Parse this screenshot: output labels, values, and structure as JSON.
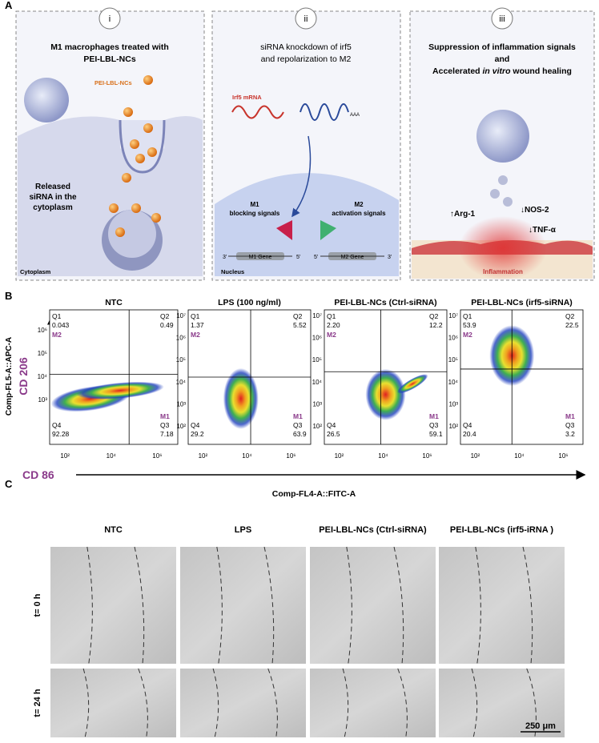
{
  "panel_a": {
    "label": "A",
    "sections": [
      {
        "numeral": "i",
        "title": [
          "M1 macrophages treated with",
          "PEI-LBL-NCs"
        ],
        "nanoparticle_label": "PEI-LBL-NCs",
        "released_label": [
          "Released",
          "siRNA  in the",
          "cytoplasm"
        ],
        "compartment": "Cytoplasm"
      },
      {
        "numeral": "ii",
        "title": [
          "siRNA knockdown of irf5",
          "and repolarization to M2"
        ],
        "mrna_label": "Irf5 mRNA",
        "poly_a": "AAA",
        "m1_signal": [
          "M1",
          "blocking signals"
        ],
        "m2_signal": [
          "M2",
          "activation signals"
        ],
        "m1_gene": "M1 Gene",
        "m2_gene": "M2 Gene",
        "end_3": "3'",
        "end_5": "5'",
        "compartment": "Nucleus"
      },
      {
        "numeral": "iii",
        "title_line1": "Suppression of inflammation signals",
        "title_line2": "and",
        "title_line3_pre": "Accelerated ",
        "title_line3_italic": "in vitro",
        "title_line3_post": " wound healing",
        "markers": [
          "↑Arg-1",
          "↓NOS-2",
          "↓TNF-α"
        ],
        "wound_label": "Inflammation"
      }
    ]
  },
  "panel_b": {
    "label": "B",
    "y_axis_title": "Comp-FL5-A::APC-A",
    "y_marker": "CD 206",
    "x_marker": "CD 86",
    "x_axis_title": "Comp-FL4-A::FITC-A",
    "gate_labels": {
      "upper_left": "M2",
      "lower_right": "M1"
    },
    "xticks": [
      "10²",
      "10⁴",
      "10⁶"
    ],
    "plots": [
      {
        "title": "NTC",
        "quadrants": [
          {
            "name": "Q1",
            "value": 0.043
          },
          {
            "name": "Q2",
            "value": 0.49
          },
          {
            "name": "Q3",
            "value": 7.18
          },
          {
            "name": "Q4",
            "value": 92.28
          }
        ],
        "yticks": [
          "10⁶",
          "10⁵",
          "10⁴",
          "10³"
        ]
      },
      {
        "title": "LPS (100 ng/ml)",
        "quadrants": [
          {
            "name": "Q1",
            "value": 1.37
          },
          {
            "name": "Q2",
            "value": 5.52
          },
          {
            "name": "Q3",
            "value": 63.9
          },
          {
            "name": "Q4",
            "value": 29.2
          }
        ],
        "yticks": [
          "10⁷",
          "10⁶",
          "10⁵",
          "10⁴",
          "10³",
          "10²"
        ]
      },
      {
        "title": "PEI-LBL-NCs (Ctrl-siRNA)",
        "quadrants": [
          {
            "name": "Q1",
            "value": {
              "value": 2.2,
              "label": "2.20"
            }
          },
          {
            "name": "Q2",
            "value": 12.2
          },
          {
            "name": "Q3",
            "value": 59.1
          },
          {
            "name": "Q4",
            "value": 26.5
          }
        ],
        "yticks": [
          "10⁷",
          "10⁶",
          "10⁵",
          "10⁴",
          "10³",
          "10²"
        ]
      },
      {
        "title": "PEI-LBL-NCs (irf5-siRNA)",
        "quadrants": [
          {
            "name": "Q1",
            "value": 53.9
          },
          {
            "name": "Q2",
            "value": 22.5
          },
          {
            "name": "Q3",
            "value": 3.2
          },
          {
            "name": "Q4",
            "value": 20.4
          }
        ],
        "yticks": [
          "10⁷",
          "10⁶",
          "10⁵",
          "10⁴",
          "10³",
          "10²"
        ]
      }
    ]
  },
  "panel_c": {
    "label": "C",
    "columns": [
      "NTC",
      "LPS",
      "PEI-LBL-NCs (Ctrl-siRNA)",
      "PEI-LBL-NCs (irf5-iRNA )"
    ],
    "rows": [
      "t= 0 h",
      "t= 24 h"
    ],
    "scale_bar": "250 μm"
  }
}
